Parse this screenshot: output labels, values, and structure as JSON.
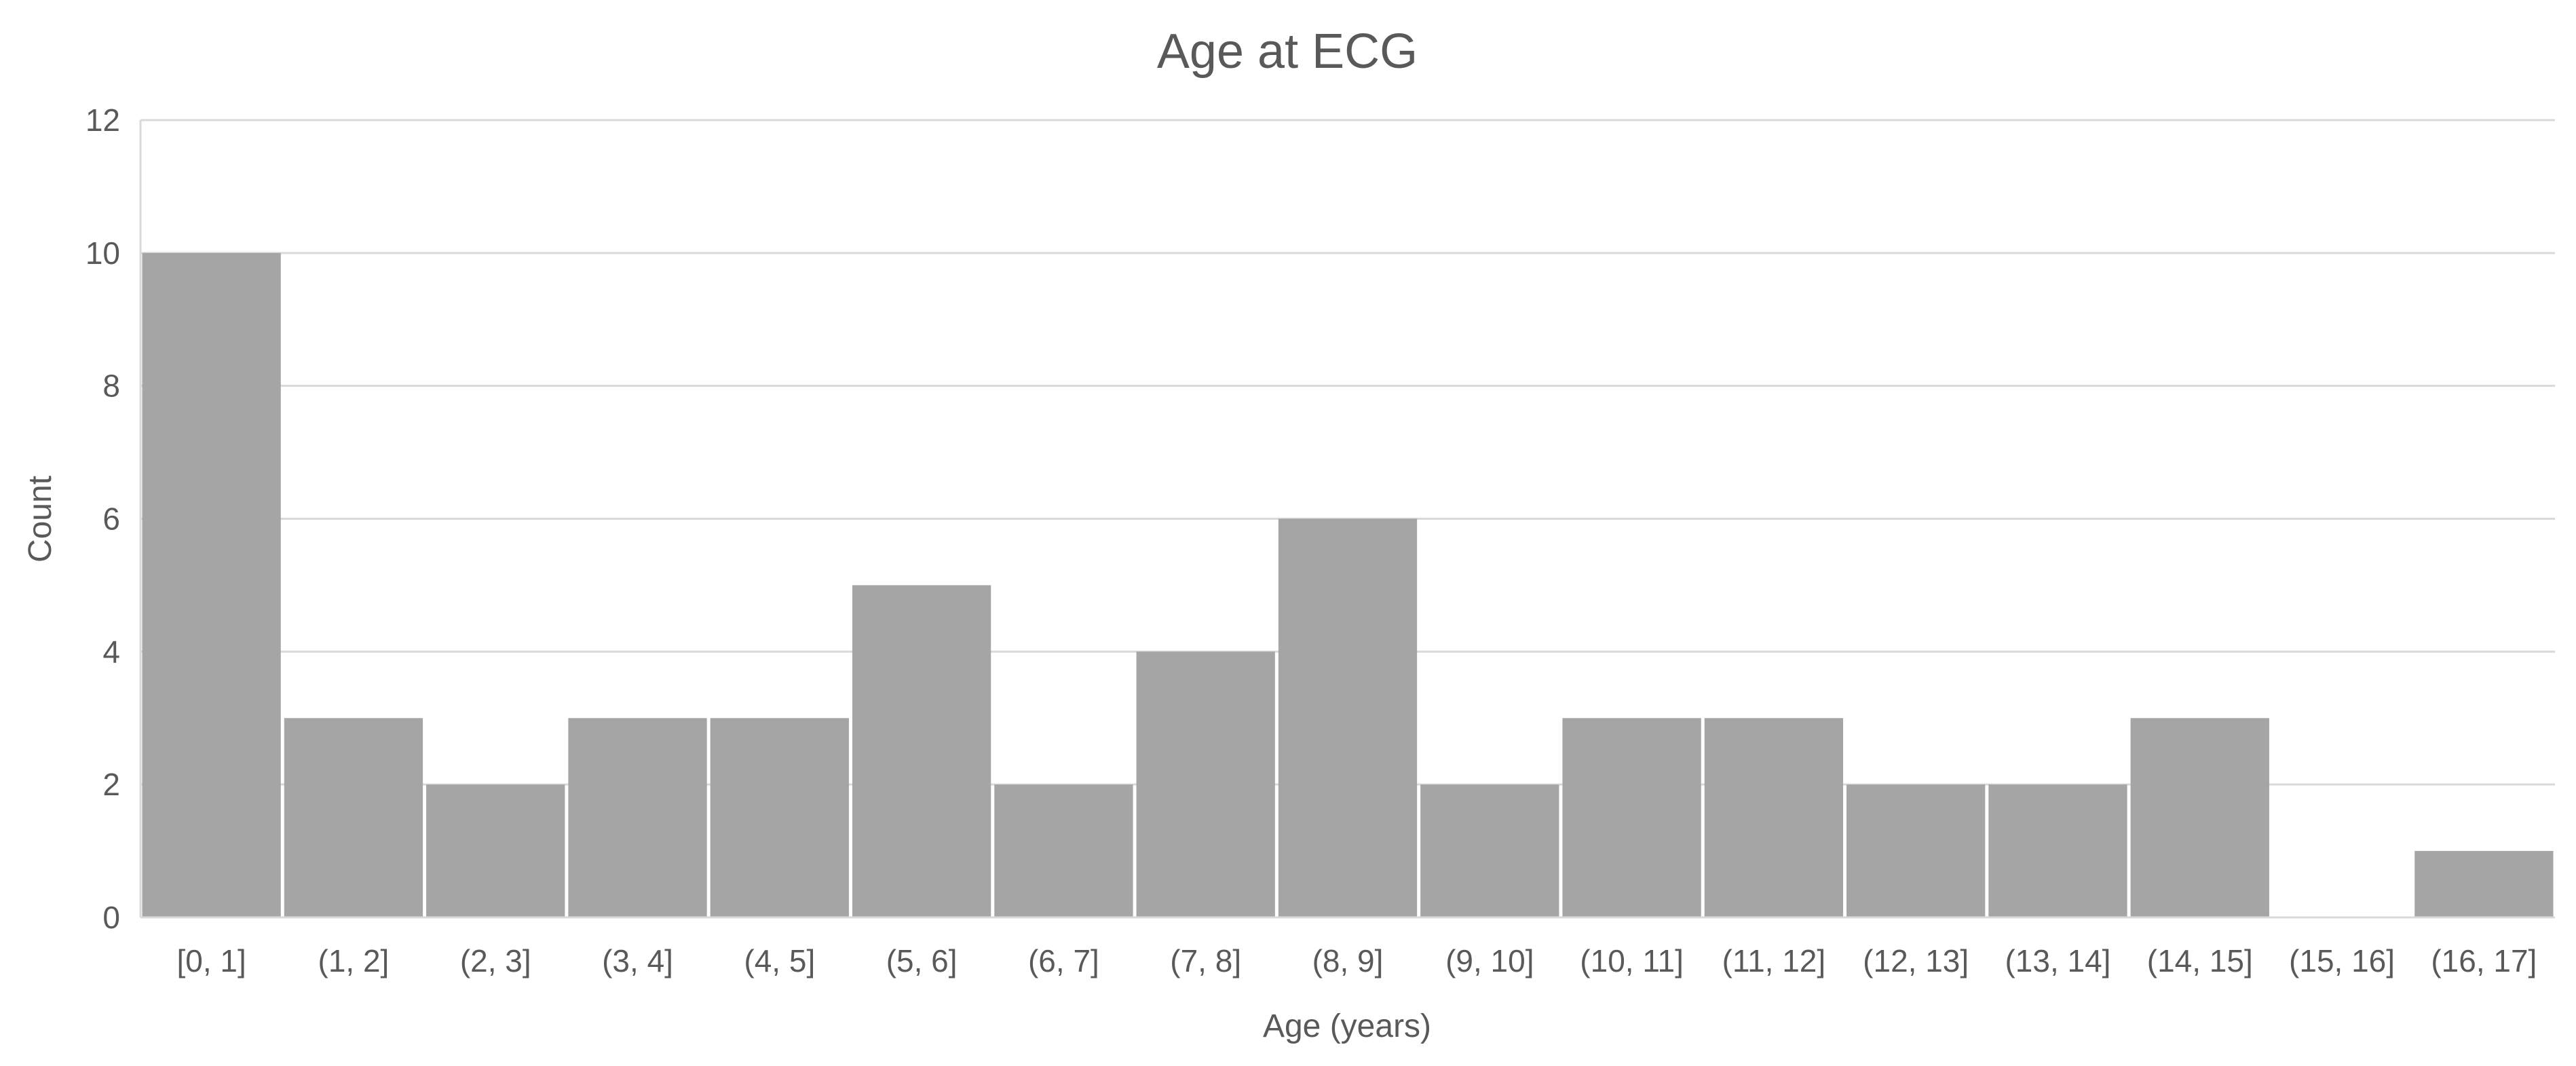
{
  "chart_data": {
    "type": "bar",
    "title": "Age at ECG",
    "xlabel": "Age (years)",
    "ylabel": "Count",
    "categories": [
      "[0, 1]",
      "(1, 2]",
      "(2, 3]",
      "(3, 4]",
      "(4, 5]",
      "(5, 6]",
      "(6, 7]",
      "(7, 8]",
      "(8, 9]",
      "(9, 10]",
      "(10, 11]",
      "(11, 12]",
      "(12, 13]",
      "(13, 14]",
      "(14, 15]",
      "(15, 16]",
      "(16, 17]"
    ],
    "values": [
      10,
      3,
      2,
      3,
      3,
      5,
      2,
      4,
      6,
      2,
      3,
      3,
      2,
      2,
      3,
      0,
      1
    ],
    "ylim": [
      0,
      12
    ],
    "yticks": [
      0,
      2,
      4,
      6,
      8,
      10,
      12
    ],
    "grid": true,
    "legend": "none",
    "bar_color": "#a5a5a5",
    "text_color": "#595959",
    "grid_color": "#d9d9d9"
  }
}
